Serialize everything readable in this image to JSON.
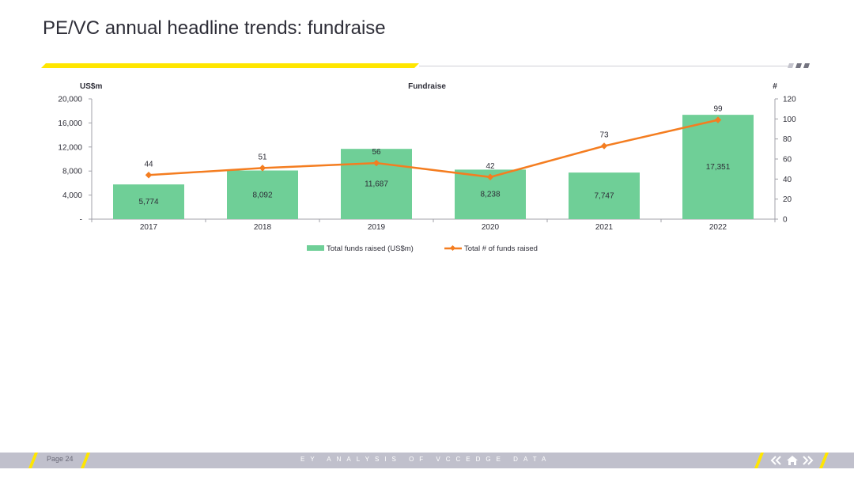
{
  "slide": {
    "title": "PE/VC annual headline trends: fundraise",
    "page_label": "Page 24",
    "footer_text": "EY ANALYSIS OF VCCEDGE DATA",
    "accent_color": "#ffe600",
    "footer_bar_color": "#c0c0cc",
    "nav": {
      "prev_icon": "double-chevron-left-icon",
      "home_icon": "home-icon",
      "next_icon": "double-chevron-right-icon"
    }
  },
  "chart_data": {
    "type": "bar",
    "title": "Fundraise",
    "categories": [
      "2017",
      "2018",
      "2019",
      "2020",
      "2021",
      "2022"
    ],
    "series": [
      {
        "name": "Total funds raised (US$m)",
        "kind": "bar",
        "axis": "left",
        "color": "#6fcf97",
        "values": [
          5774,
          8092,
          11687,
          8238,
          7747,
          17351
        ],
        "labels": [
          "5,774",
          "8,092",
          "11,687",
          "8,238",
          "7,747",
          "17,351"
        ]
      },
      {
        "name": "Total # of funds raised",
        "kind": "line",
        "axis": "right",
        "color": "#f47d20",
        "values": [
          44,
          51,
          56,
          42,
          73,
          99
        ],
        "labels": [
          "44",
          "51",
          "56",
          "42",
          "73",
          "99"
        ]
      }
    ],
    "left_axis": {
      "label": "US$m",
      "ylim": [
        0,
        20000
      ],
      "ticks": [
        0,
        4000,
        8000,
        12000,
        16000,
        20000
      ],
      "tick_labels": [
        "-",
        "4,000",
        "8,000",
        "12,000",
        "16,000",
        "20,000"
      ]
    },
    "right_axis": {
      "label": "#",
      "ylim": [
        0,
        120
      ],
      "ticks": [
        0,
        20,
        40,
        60,
        80,
        100,
        120
      ],
      "tick_labels": [
        "0",
        "20",
        "40",
        "60",
        "80",
        "100",
        "120"
      ]
    },
    "grid": false,
    "legend_position": "bottom-center"
  }
}
